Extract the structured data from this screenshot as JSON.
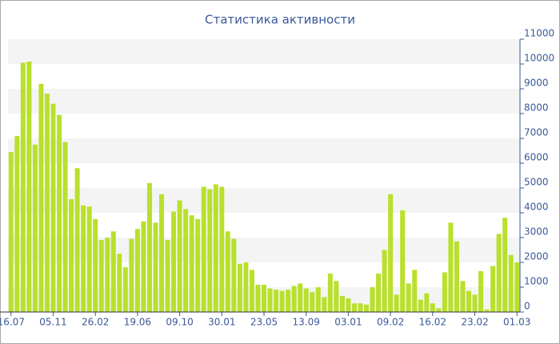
{
  "chart_data": {
    "type": "bar",
    "title": "Статистика активности",
    "categories": [
      "16.07",
      null,
      null,
      null,
      null,
      null,
      null,
      "05.11",
      null,
      null,
      null,
      null,
      null,
      null,
      "26.02",
      null,
      null,
      null,
      null,
      null,
      null,
      "19.06",
      null,
      null,
      null,
      null,
      null,
      null,
      "09.10",
      null,
      null,
      null,
      null,
      null,
      null,
      "30.01",
      null,
      null,
      null,
      null,
      null,
      null,
      "23.05",
      null,
      null,
      null,
      null,
      null,
      null,
      "13.09",
      null,
      null,
      null,
      null,
      null,
      null,
      "03.01",
      null,
      null,
      null,
      null,
      null,
      null,
      "09.02",
      null,
      null,
      null,
      null,
      null,
      null,
      "16.02",
      null,
      null,
      null,
      null,
      null,
      null,
      "23.02",
      null,
      null,
      null,
      null,
      null,
      null,
      "01.03"
    ],
    "values": [
      6450,
      7100,
      10050,
      10100,
      6750,
      9200,
      8800,
      8400,
      7950,
      6850,
      4550,
      5800,
      4300,
      4250,
      3750,
      2900,
      3000,
      3250,
      2350,
      1800,
      2950,
      3350,
      3650,
      5200,
      3600,
      4750,
      2900,
      4050,
      4500,
      4150,
      3900,
      3750,
      5050,
      4950,
      5150,
      5050,
      3250,
      2950,
      1950,
      2000,
      1700,
      1100,
      1100,
      950,
      900,
      850,
      900,
      1050,
      1150,
      950,
      800,
      1000,
      600,
      1550,
      1250,
      650,
      550,
      350,
      350,
      300,
      1000,
      1550,
      2500,
      4750,
      700,
      4100,
      1150,
      1700,
      500,
      750,
      350,
      150,
      1600,
      3600,
      2850,
      1250,
      850,
      700,
      1650,
      100,
      1850,
      3150,
      3800,
      2300,
      2000
    ],
    "color": "#b9e02d",
    "ylim": [
      0,
      11000
    ],
    "yticks": [
      0,
      1000,
      2000,
      3000,
      4000,
      5000,
      6000,
      7000,
      8000,
      9000,
      10000,
      11000
    ],
    "grid": "bands"
  }
}
